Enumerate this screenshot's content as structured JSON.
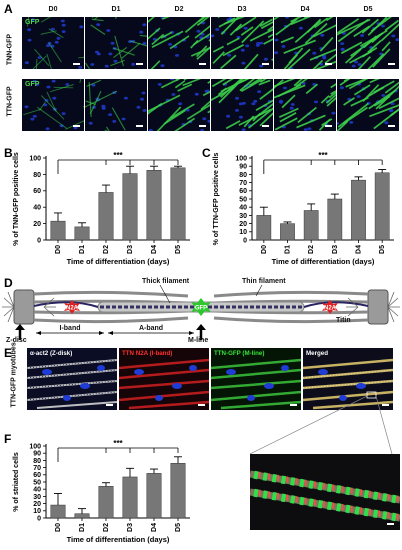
{
  "panel_labels": {
    "a": "A",
    "b": "B",
    "c": "C",
    "d": "D",
    "e": "E",
    "f": "F"
  },
  "panel_a": {
    "columns": [
      "D0",
      "D1",
      "D2",
      "D3",
      "D4",
      "D5"
    ],
    "rows": [
      "TNN-GFP",
      "TTN-GFP"
    ],
    "gfp_tag": "GFP"
  },
  "panel_d": {
    "thick_filament": "Thick filament",
    "thin_filament": "Thin filament",
    "n2a": "N2A",
    "gfp": "GFP",
    "titin": "Titin",
    "z_disc": "Z-disc",
    "i_band": "I-band",
    "a_band": "A-band",
    "m_line": "M-line"
  },
  "panel_e": {
    "row_label": "TTN-GFP myotubes",
    "titles": [
      {
        "main": "α-act2 ",
        "sub": "(Z-disk)",
        "color": "#ffffff",
        "sub_color": "#ffffff"
      },
      {
        "main": "TTN N2A ",
        "sub": "(I-band)",
        "color": "#ff3030",
        "sub_color": "#ff3030"
      },
      {
        "main": "TTN-GFP ",
        "sub": "(M-line)",
        "color": "#3ae43a",
        "sub_color": "#3ae43a"
      },
      {
        "main": "Merged",
        "sub": "",
        "color": "#ffffff",
        "sub_color": "#ffffff"
      }
    ]
  },
  "chart_data": [
    {
      "panel": "B",
      "type": "bar",
      "categories": [
        "D0",
        "D1",
        "D2",
        "D3",
        "D4",
        "D5"
      ],
      "values": [
        23,
        16,
        58,
        81,
        85,
        88
      ],
      "errors": [
        10,
        5,
        9,
        9,
        5,
        2
      ],
      "ylabel": "% of TNN-GFP positive cells",
      "xlabel": "Time of differentiation (days)",
      "ylim": [
        0,
        100
      ],
      "yticks": [
        "0",
        "20",
        "40",
        "60",
        "80",
        "100"
      ],
      "significance": "***",
      "bar_color": "#777777"
    },
    {
      "panel": "C",
      "type": "bar",
      "categories": [
        "D0",
        "D1",
        "D2",
        "D3",
        "D4",
        "D5"
      ],
      "values": [
        30,
        20,
        36,
        50,
        73,
        82
      ],
      "errors": [
        10,
        2,
        8,
        6,
        4,
        4
      ],
      "ylabel": "% of TTN-GFP positive cells",
      "xlabel": "Time of differentiation (days)",
      "ylim": [
        0,
        100
      ],
      "yticks": [
        "0",
        "10",
        "20",
        "30",
        "40",
        "50",
        "60",
        "70",
        "80",
        "90",
        "100"
      ],
      "significance": "***",
      "bar_color": "#777777"
    },
    {
      "panel": "F",
      "type": "bar",
      "categories": [
        "D0",
        "D1",
        "D2",
        "D3",
        "D4",
        "D5"
      ],
      "values": [
        18,
        6,
        44,
        57,
        62,
        76
      ],
      "errors": [
        16,
        7,
        5,
        12,
        6,
        9
      ],
      "ylabel": "% of striated cells",
      "xlabel": "Time of differentiation (days)",
      "ylim": [
        0,
        100
      ],
      "yticks": [
        "0",
        "10",
        "20",
        "30",
        "40",
        "50",
        "60",
        "70",
        "80",
        "90",
        "100"
      ],
      "significance": "***",
      "bar_color": "#777777"
    }
  ]
}
